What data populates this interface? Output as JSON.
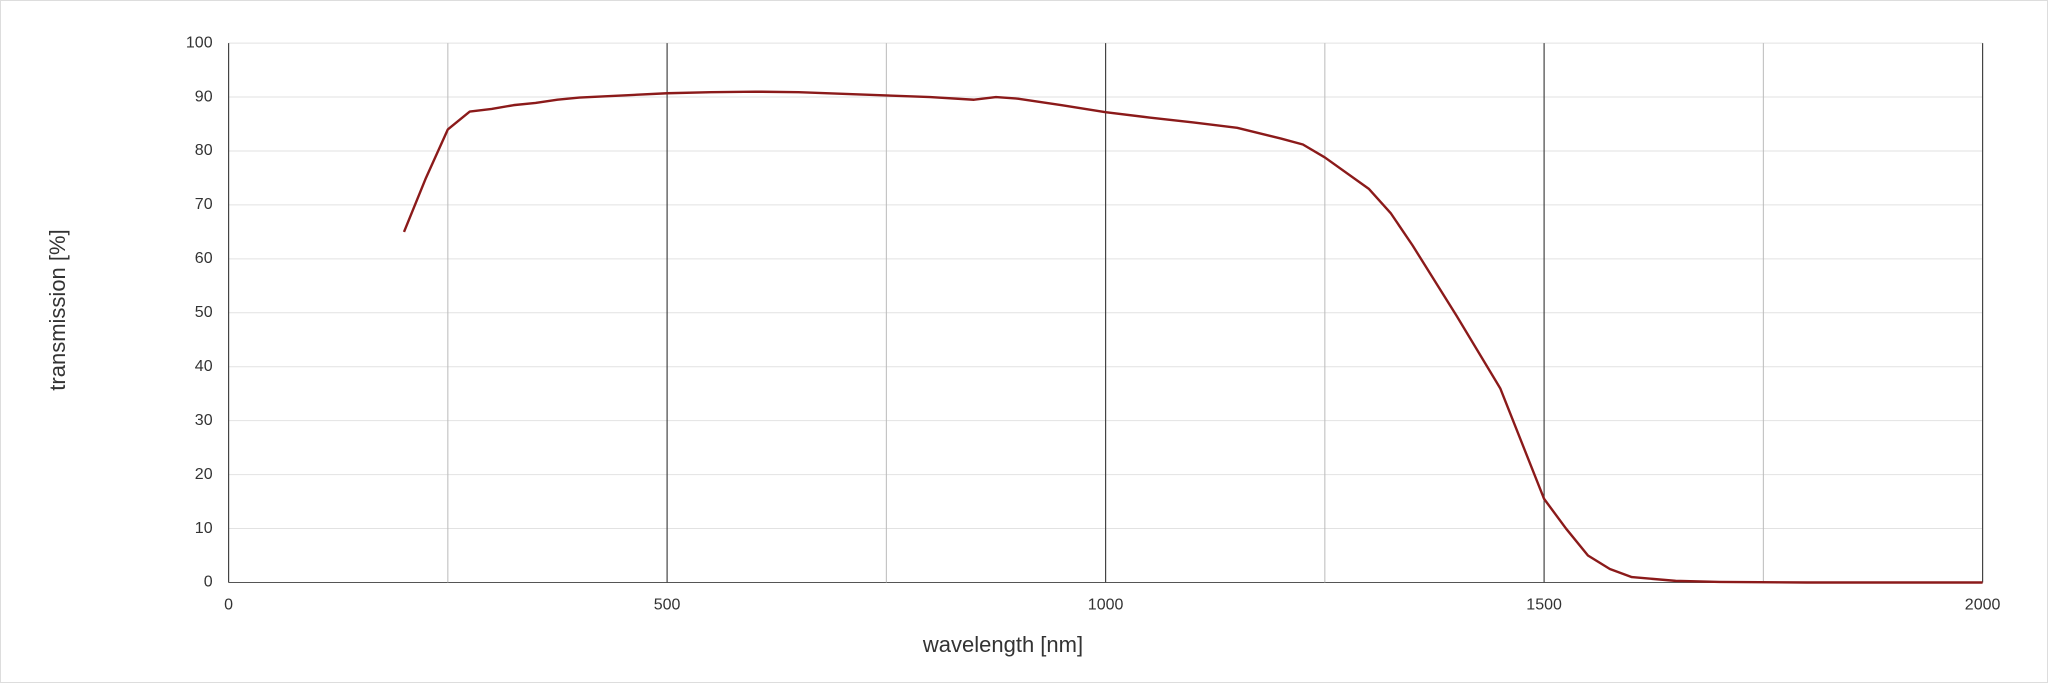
{
  "chart_data": {
    "type": "line",
    "x_label": "wavelength [nm]",
    "y_label": "transmission [%]",
    "x": [
      200,
      225,
      250,
      275,
      300,
      325,
      350,
      375,
      400,
      450,
      500,
      550,
      600,
      650,
      700,
      750,
      800,
      850,
      875,
      900,
      950,
      1000,
      1050,
      1100,
      1150,
      1200,
      1225,
      1250,
      1300,
      1325,
      1350,
      1400,
      1450,
      1500,
      1525,
      1550,
      1575,
      1600,
      1650,
      1700,
      1800,
      1900,
      2000
    ],
    "series": [
      {
        "name": "transmission",
        "color": "#8b1a1a",
        "values": [
          65,
          75,
          84,
          87.3,
          87.8,
          88.5,
          88.9,
          89.5,
          89.9,
          90.3,
          90.7,
          90.9,
          91,
          90.9,
          90.6,
          90.3,
          90,
          89.5,
          90,
          89.7,
          88.5,
          87.2,
          86.2,
          85.3,
          84.3,
          82.3,
          81.2,
          78.8,
          73,
          68.5,
          62.5,
          49.5,
          36,
          15.5,
          10,
          5,
          2.5,
          1,
          0.3,
          0.1,
          0,
          0,
          0
        ]
      }
    ],
    "xlim": [
      0,
      2000
    ],
    "xticks": [
      0,
      500,
      1000,
      1500,
      2000
    ],
    "xminorticks": [
      250,
      750,
      1250,
      1750
    ],
    "ylim": [
      0,
      100
    ],
    "yticks": [
      0,
      10,
      20,
      30,
      40,
      50,
      60,
      70,
      80,
      90,
      100
    ],
    "grid": true
  }
}
